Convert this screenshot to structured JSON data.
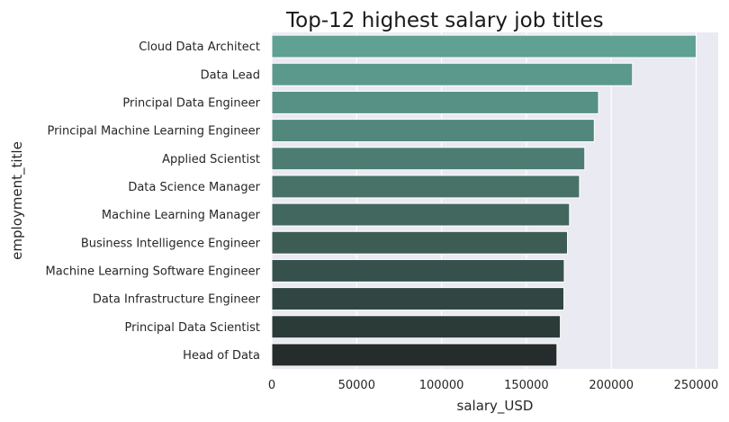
{
  "chart_data": {
    "type": "bar",
    "orientation": "horizontal",
    "title": "Top-12 highest salary job titles",
    "xlabel": "salary_USD",
    "ylabel": "employment_title",
    "xlim": [
      0,
      263000
    ],
    "xticks": [
      0,
      50000,
      100000,
      150000,
      200000,
      250000
    ],
    "grid": true,
    "categories": [
      "Cloud Data Architect",
      "Data Lead",
      "Principal Data Engineer",
      "Principal Machine Learning Engineer",
      "Applied Scientist",
      "Data Science Manager",
      "Machine Learning Manager",
      "Business Intelligence Engineer",
      "Machine Learning Software Engineer",
      "Data Infrastructure Engineer",
      "Principal Data Scientist",
      "Head of Data"
    ],
    "values": [
      250000,
      212500,
      192500,
      190000,
      184400,
      181300,
      175400,
      174200,
      172300,
      172100,
      170000,
      168000
    ],
    "colors": [
      "#5fa193",
      "#5b998c",
      "#579084",
      "#52877c",
      "#4d7d72",
      "#487268",
      "#42675e",
      "#3c5c54",
      "#36514b",
      "#304642",
      "#2b3b38",
      "#262c2b"
    ]
  }
}
